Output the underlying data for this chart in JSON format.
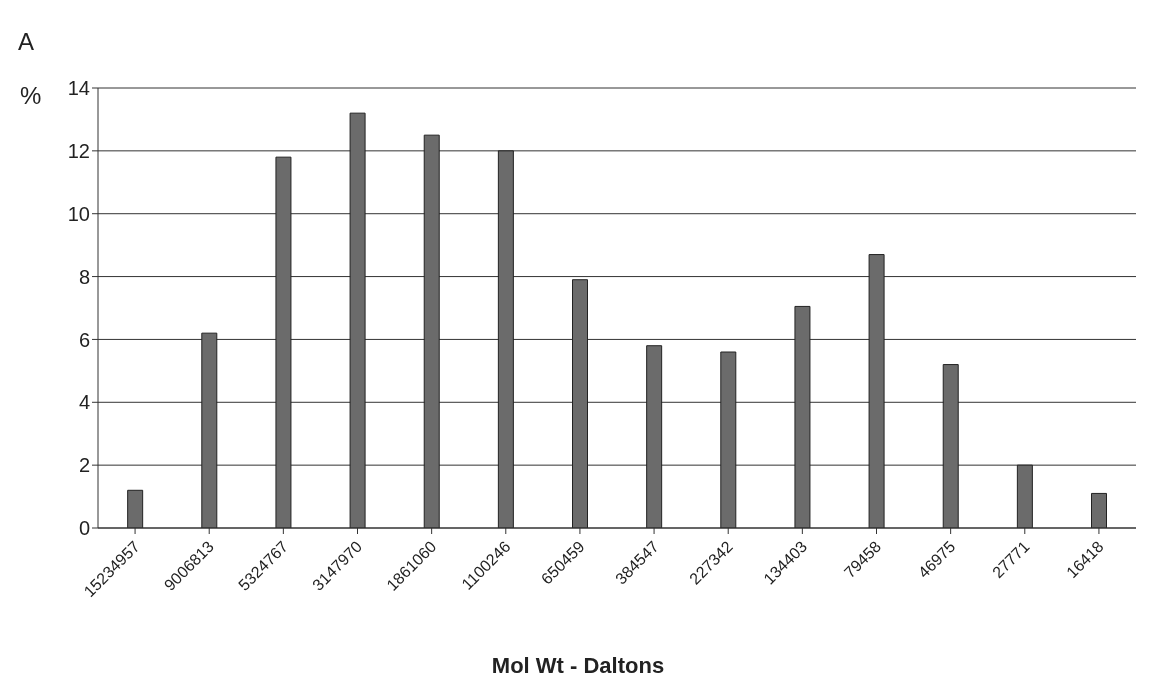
{
  "chart_data": {
    "type": "bar",
    "annotations": [
      "A"
    ],
    "ylabel": "%",
    "xlabel": "Mol Wt - Daltons",
    "categories": [
      "15234957",
      "9006813",
      "5324767",
      "3147970",
      "1861060",
      "1100246",
      "650459",
      "384547",
      "227342",
      "134403",
      "79458",
      "46975",
      "27771",
      "16418"
    ],
    "values": [
      1.2,
      6.2,
      11.8,
      13.2,
      12.5,
      12.0,
      7.9,
      5.8,
      5.6,
      7.05,
      8.7,
      5.2,
      2.0,
      1.1
    ],
    "color": "#6b6b6b",
    "ylim": [
      0,
      14
    ],
    "yticks": [
      0,
      2,
      4,
      6,
      8,
      10,
      12,
      14
    ],
    "grid": "y"
  }
}
